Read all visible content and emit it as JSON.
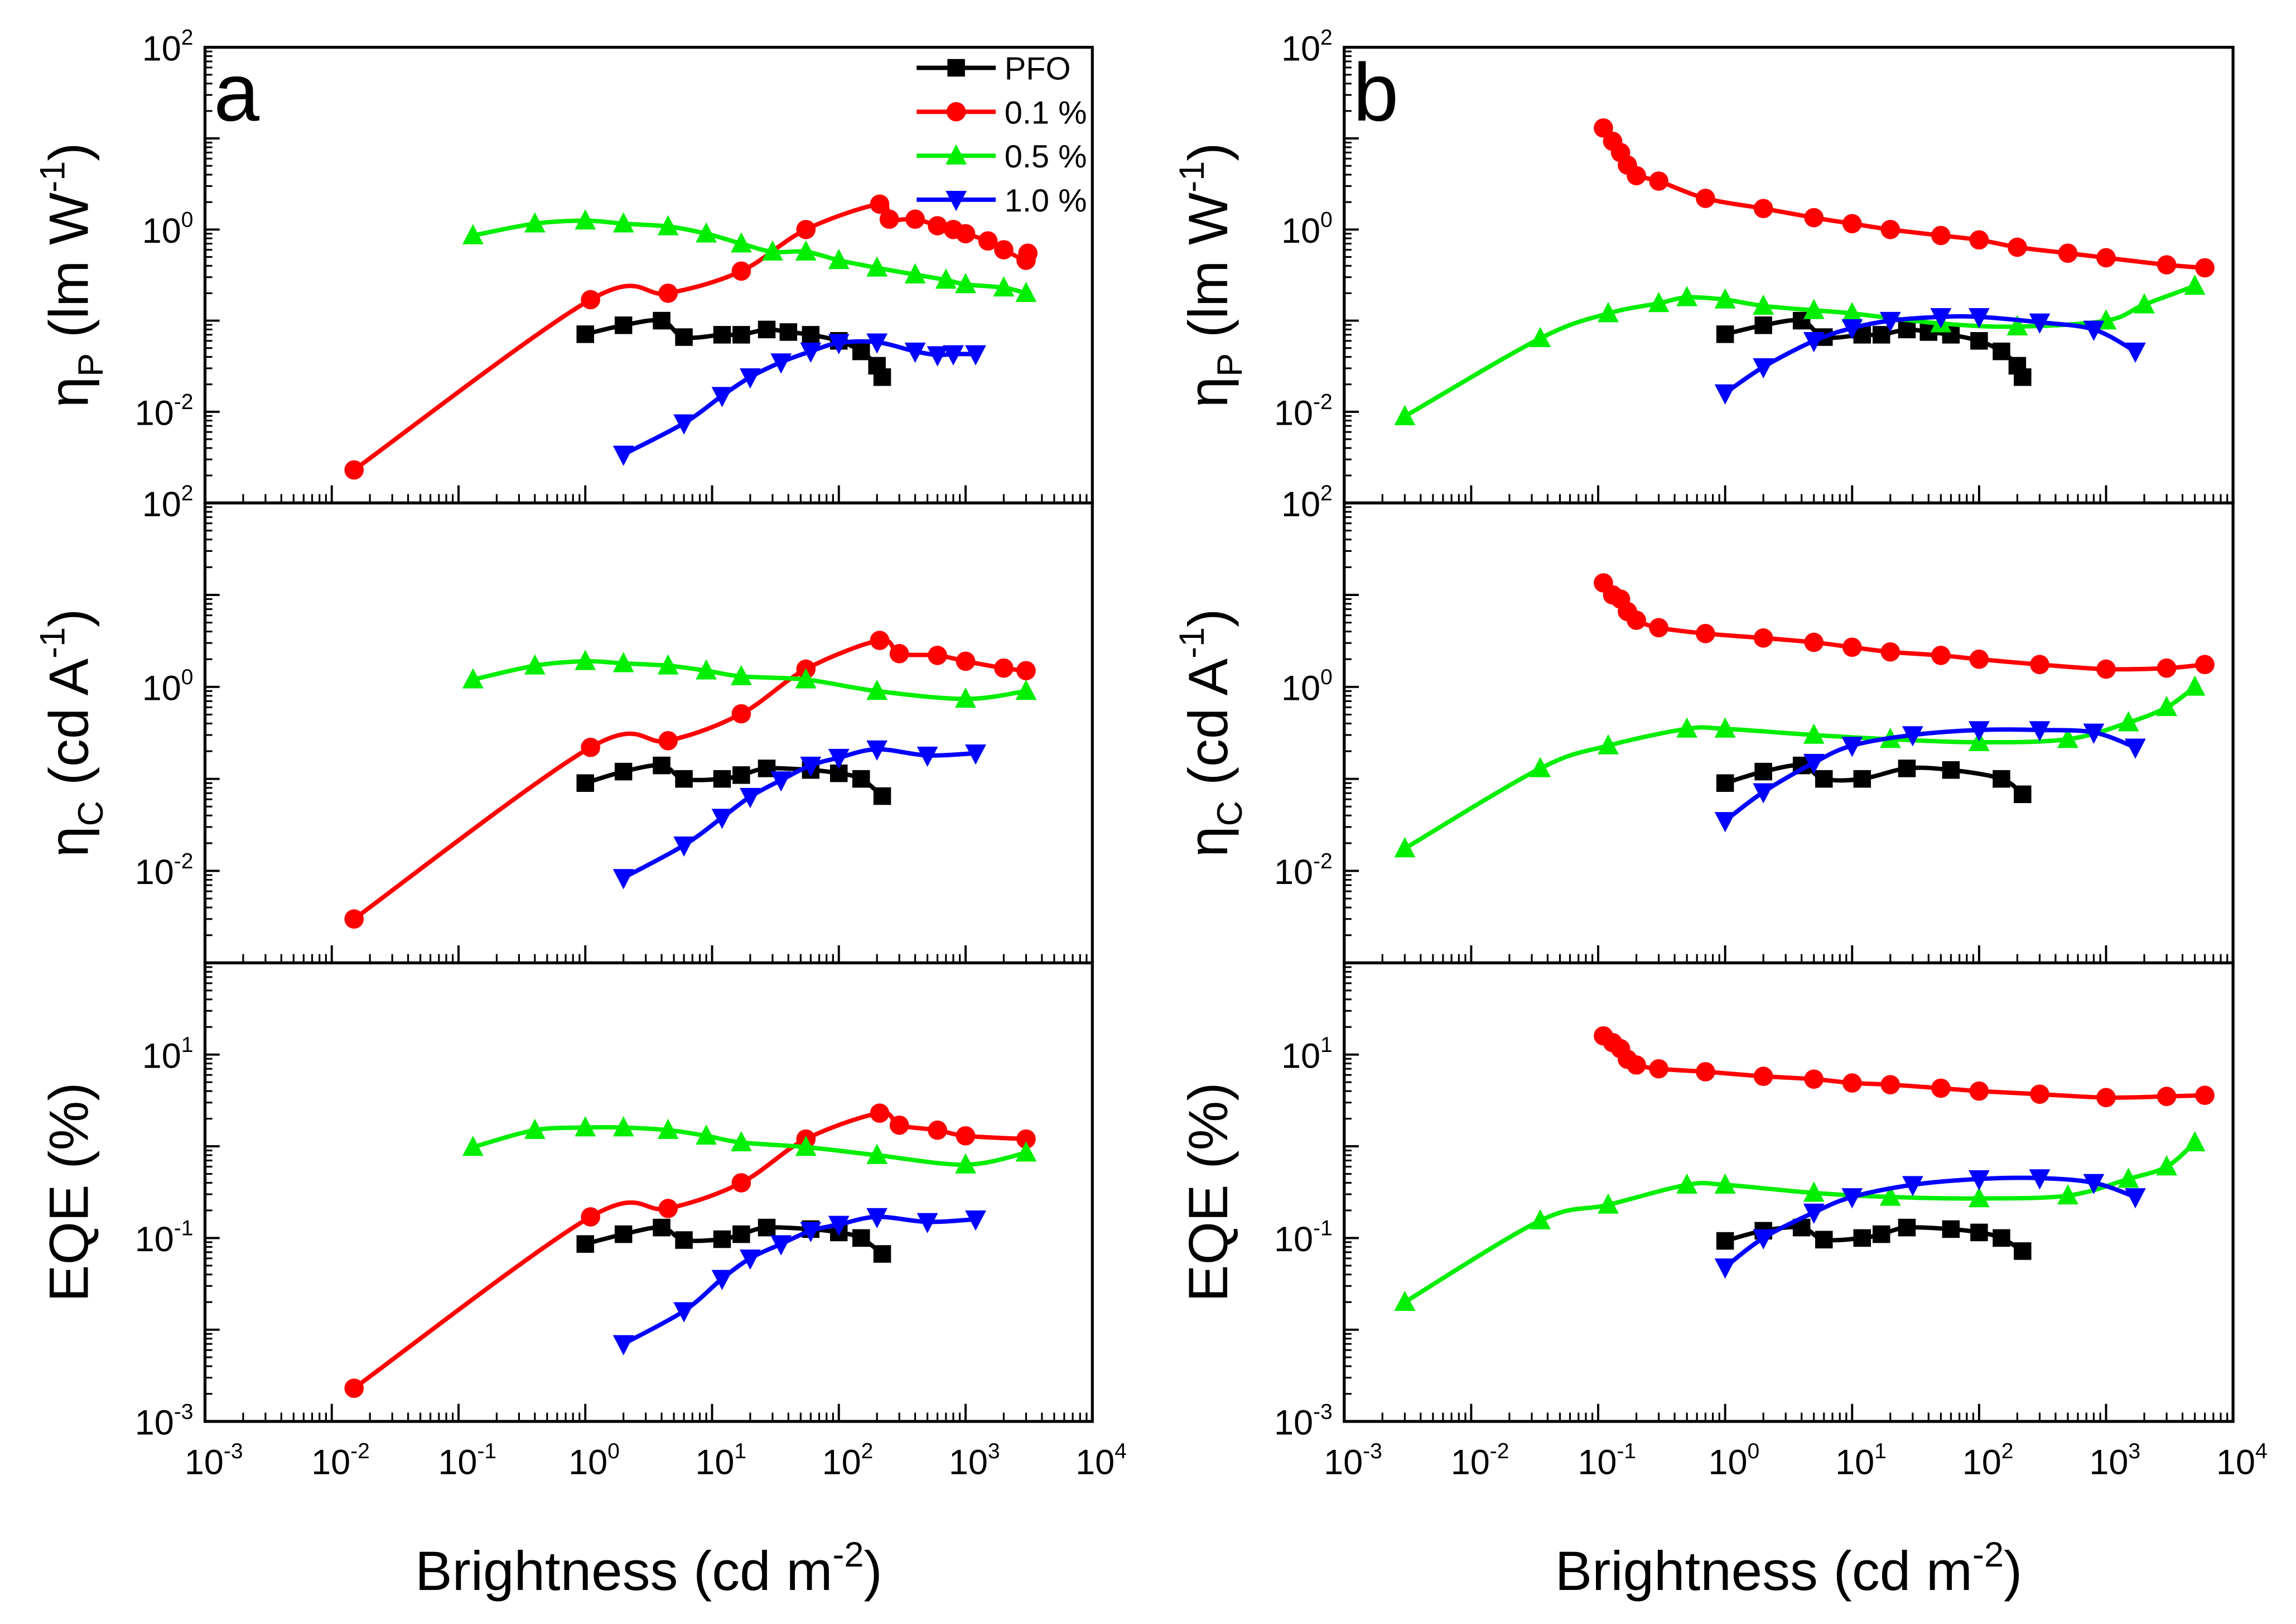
{
  "colors": {
    "PFO": "#000000",
    "0.1 %": "#ff0000",
    "0.5 %": "#00ee00",
    "1.0 %": "#0000ff"
  },
  "legend": {
    "placement": "top-right of panel a top plot",
    "entries": [
      "PFO",
      "0.1 %",
      "0.5 %",
      "1.0 %"
    ],
    "markers": [
      "square",
      "circle",
      "triangle-up",
      "triangle-down"
    ]
  },
  "xlabel": {
    "main": "Brightness (cd m",
    "sup": "-2",
    "close": ")"
  },
  "panel_labels": [
    "a",
    "b"
  ],
  "chart_data": [
    {
      "type": "line",
      "panel": "a",
      "row": 0,
      "ylabel": {
        "sym": "η",
        "sub": "P",
        "unit": " (lm W",
        "sup": "-1",
        "close": ")"
      },
      "xscale": "log",
      "yscale": "log",
      "xlim": [
        0.001,
        10000
      ],
      "ylim": [
        0.001,
        100
      ],
      "xticks": [
        "-3",
        "-2",
        "-1",
        "0",
        "1",
        "2",
        "3",
        "4"
      ],
      "yticks": [
        "2",
        "0",
        "-2"
      ],
      "grid": false,
      "series": [
        {
          "name": "PFO",
          "x": [
            1,
            2,
            4,
            6,
            12,
            17,
            27,
            40,
            60,
            100,
            150,
            200,
            220
          ],
          "y": [
            0.071,
            0.089,
            0.1,
            0.066,
            0.07,
            0.07,
            0.08,
            0.075,
            0.07,
            0.06,
            0.046,
            0.032,
            0.024
          ]
        },
        {
          "name": "0.1 %",
          "x": [
            0.015,
            1.1,
            4.5,
            17,
            55,
            210,
            250,
            400,
            600,
            800,
            1000,
            1500,
            2000,
            3000,
            3100
          ],
          "y": [
            0.0023,
            0.17,
            0.2,
            0.35,
            1.0,
            1.9,
            1.3,
            1.3,
            1.1,
            1.0,
            0.9,
            0.75,
            0.6,
            0.46,
            0.55
          ]
        },
        {
          "name": "0.5 %",
          "x": [
            0.13,
            0.4,
            1,
            2,
            4.5,
            9,
            17,
            30,
            55,
            100,
            200,
            400,
            700,
            1000,
            2000,
            3000
          ],
          "y": [
            0.86,
            1.16,
            1.25,
            1.16,
            1.08,
            0.9,
            0.7,
            0.57,
            0.57,
            0.46,
            0.38,
            0.32,
            0.28,
            0.25,
            0.23,
            0.2
          ]
        },
        {
          "name": "1.0 %",
          "x": [
            2,
            6,
            12,
            20,
            35,
            60,
            100,
            200,
            400,
            600,
            800,
            1200
          ],
          "y": [
            0.0034,
            0.0075,
            0.015,
            0.024,
            0.035,
            0.046,
            0.057,
            0.058,
            0.046,
            0.042,
            0.043,
            0.043
          ]
        }
      ]
    },
    {
      "type": "line",
      "panel": "a",
      "row": 1,
      "ylabel": {
        "sym": "η",
        "sub": "C",
        "unit": " (cd A",
        "sup": "-1",
        "close": ")"
      },
      "xscale": "log",
      "yscale": "log",
      "xlim": [
        0.001,
        10000
      ],
      "ylim": [
        0.001,
        100
      ],
      "xticks": [
        "-3",
        "-2",
        "-1",
        "0",
        "1",
        "2",
        "3",
        "4"
      ],
      "yticks": [
        "2",
        "0",
        "-2"
      ],
      "grid": false,
      "series": [
        {
          "name": "PFO",
          "x": [
            1,
            2,
            4,
            6,
            12,
            17,
            27,
            60,
            100,
            150,
            220
          ],
          "y": [
            0.09,
            0.12,
            0.14,
            0.1,
            0.1,
            0.11,
            0.13,
            0.125,
            0.115,
            0.1,
            0.065
          ]
        },
        {
          "name": "0.1 %",
          "x": [
            0.015,
            1.1,
            4.5,
            17,
            55,
            210,
            300,
            600,
            1000,
            2000,
            3000
          ],
          "y": [
            0.003,
            0.22,
            0.26,
            0.51,
            1.56,
            3.2,
            2.3,
            2.2,
            1.9,
            1.6,
            1.5
          ]
        },
        {
          "name": "0.5 %",
          "x": [
            0.13,
            0.4,
            1,
            2,
            4.5,
            9,
            17,
            55,
            200,
            1000,
            3000
          ],
          "y": [
            1.2,
            1.7,
            1.9,
            1.8,
            1.7,
            1.5,
            1.3,
            1.2,
            0.9,
            0.74,
            0.9
          ]
        },
        {
          "name": "1.0 %",
          "x": [
            2,
            6,
            12,
            20,
            35,
            60,
            100,
            200,
            500,
            1200
          ],
          "y": [
            0.0084,
            0.019,
            0.038,
            0.064,
            0.097,
            0.14,
            0.17,
            0.21,
            0.18,
            0.19
          ]
        }
      ]
    },
    {
      "type": "line",
      "panel": "a",
      "row": 2,
      "ylabel": {
        "sym": "",
        "sub": "",
        "unit": "EQE (%",
        "sup": "",
        "close": ")"
      },
      "xscale": "log",
      "yscale": "log",
      "xlim": [
        0.001,
        10000
      ],
      "ylim": [
        0.001,
        100
      ],
      "xticks": [
        "-3",
        "-2",
        "-1",
        "0",
        "1",
        "2",
        "3",
        "4"
      ],
      "yticks": [
        "1",
        "-1",
        "-3"
      ],
      "grid": false,
      "series": [
        {
          "name": "PFO",
          "x": [
            1,
            2,
            4,
            6,
            12,
            17,
            27,
            60,
            100,
            150,
            220
          ],
          "y": [
            0.086,
            0.11,
            0.13,
            0.095,
            0.097,
            0.11,
            0.13,
            0.125,
            0.115,
            0.1,
            0.067
          ]
        },
        {
          "name": "0.1 %",
          "x": [
            0.015,
            1.1,
            4.5,
            17,
            55,
            210,
            300,
            600,
            1000,
            3000
          ],
          "y": [
            0.0023,
            0.17,
            0.21,
            0.4,
            1.2,
            2.3,
            1.7,
            1.5,
            1.3,
            1.2
          ]
        },
        {
          "name": "0.5 %",
          "x": [
            0.13,
            0.4,
            1,
            2,
            4.5,
            9,
            17,
            55,
            200,
            1000,
            3000
          ],
          "y": [
            0.98,
            1.5,
            1.6,
            1.6,
            1.5,
            1.3,
            1.1,
            0.98,
            0.8,
            0.63,
            0.85
          ]
        },
        {
          "name": "1.0 %",
          "x": [
            2,
            6,
            12,
            20,
            35,
            60,
            100,
            200,
            500,
            1200
          ],
          "y": [
            0.007,
            0.016,
            0.036,
            0.06,
            0.086,
            0.12,
            0.14,
            0.17,
            0.15,
            0.16
          ]
        }
      ]
    },
    {
      "type": "line",
      "panel": "b",
      "row": 0,
      "ylabel": {
        "sym": "η",
        "sub": "P",
        "unit": " (lm W",
        "sup": "-1",
        "close": ")"
      },
      "xscale": "log",
      "yscale": "log",
      "xlim": [
        0.001,
        10000
      ],
      "ylim": [
        0.001,
        100
      ],
      "xticks": [
        "-3",
        "-2",
        "-1",
        "0",
        "1",
        "2",
        "3",
        "4"
      ],
      "yticks": [
        "2",
        "0",
        "-2"
      ],
      "grid": false,
      "series": [
        {
          "name": "PFO",
          "x": [
            1,
            2,
            4,
            6,
            12,
            17,
            27,
            40,
            60,
            100,
            150,
            200,
            220
          ],
          "y": [
            0.071,
            0.089,
            0.1,
            0.066,
            0.07,
            0.07,
            0.08,
            0.075,
            0.07,
            0.06,
            0.046,
            0.032,
            0.024
          ]
        },
        {
          "name": "0.1 %",
          "x": [
            0.11,
            0.13,
            0.15,
            0.17,
            0.2,
            0.3,
            0.7,
            2,
            5,
            10,
            20,
            50,
            100,
            200,
            500,
            1000,
            3000,
            6000
          ],
          "y": [
            13,
            9.3,
            7,
            5.1,
            3.9,
            3.4,
            2.2,
            1.7,
            1.35,
            1.16,
            1.0,
            0.86,
            0.77,
            0.64,
            0.55,
            0.49,
            0.41,
            0.38
          ]
        },
        {
          "name": "0.5 %",
          "x": [
            0.003,
            0.035,
            0.12,
            0.3,
            0.5,
            1,
            2,
            5,
            10,
            50,
            200,
            1000,
            2000,
            5000
          ],
          "y": [
            0.0089,
            0.064,
            0.12,
            0.155,
            0.18,
            0.17,
            0.145,
            0.13,
            0.12,
            0.093,
            0.086,
            0.1,
            0.15,
            0.24
          ]
        },
        {
          "name": "1.0 %",
          "x": [
            1,
            2,
            5,
            10,
            20,
            50,
            100,
            300,
            800,
            1700
          ],
          "y": [
            0.016,
            0.031,
            0.06,
            0.083,
            0.1,
            0.11,
            0.11,
            0.096,
            0.08,
            0.046
          ]
        }
      ]
    },
    {
      "type": "line",
      "panel": "b",
      "row": 1,
      "ylabel": {
        "sym": "η",
        "sub": "C",
        "unit": " (cd A",
        "sup": "-1",
        "close": ")"
      },
      "xscale": "log",
      "yscale": "log",
      "xlim": [
        0.001,
        10000
      ],
      "ylim": [
        0.001,
        100
      ],
      "xticks": [
        "-3",
        "-2",
        "-1",
        "0",
        "1",
        "2",
        "3",
        "4"
      ],
      "yticks": [
        "2",
        "0",
        "-2"
      ],
      "grid": false,
      "series": [
        {
          "name": "PFO",
          "x": [
            1,
            2,
            4,
            6,
            12,
            27,
            60,
            150,
            220
          ],
          "y": [
            0.09,
            0.12,
            0.14,
            0.1,
            0.1,
            0.13,
            0.125,
            0.1,
            0.068
          ]
        },
        {
          "name": "0.1 %",
          "x": [
            0.11,
            0.13,
            0.15,
            0.17,
            0.2,
            0.3,
            0.7,
            2,
            5,
            10,
            20,
            50,
            100,
            300,
            1000,
            3000,
            6000
          ],
          "y": [
            13.5,
            10,
            9,
            6.6,
            5.3,
            4.4,
            3.8,
            3.4,
            3.05,
            2.7,
            2.4,
            2.2,
            2.0,
            1.75,
            1.56,
            1.6,
            1.75
          ]
        },
        {
          "name": "0.5 %",
          "x": [
            0.003,
            0.035,
            0.12,
            0.5,
            1,
            5,
            20,
            100,
            500,
            1500,
            3000,
            5000
          ],
          "y": [
            0.0175,
            0.13,
            0.23,
            0.35,
            0.35,
            0.3,
            0.27,
            0.25,
            0.27,
            0.41,
            0.6,
            1.0
          ]
        },
        {
          "name": "1.0 %",
          "x": [
            1,
            2,
            5,
            10,
            30,
            100,
            300,
            800,
            1700
          ],
          "y": [
            0.035,
            0.072,
            0.15,
            0.23,
            0.3,
            0.34,
            0.34,
            0.32,
            0.22
          ]
        }
      ]
    },
    {
      "type": "line",
      "panel": "b",
      "row": 2,
      "ylabel": {
        "sym": "",
        "sub": "",
        "unit": "EQE (%",
        "sup": "",
        "close": ")"
      },
      "xscale": "log",
      "yscale": "log",
      "xlim": [
        0.001,
        10000
      ],
      "ylim": [
        0.001,
        100
      ],
      "xticks": [
        "-3",
        "-2",
        "-1",
        "0",
        "1",
        "2",
        "3",
        "4"
      ],
      "yticks": [
        "1",
        "-1",
        "-3"
      ],
      "grid": false,
      "series": [
        {
          "name": "PFO",
          "x": [
            1,
            2,
            4,
            6,
            12,
            17,
            27,
            60,
            100,
            150,
            220
          ],
          "y": [
            0.093,
            0.12,
            0.13,
            0.096,
            0.1,
            0.11,
            0.13,
            0.125,
            0.115,
            0.1,
            0.072
          ]
        },
        {
          "name": "0.1 %",
          "x": [
            0.11,
            0.13,
            0.15,
            0.17,
            0.2,
            0.3,
            0.7,
            2,
            5,
            10,
            20,
            50,
            100,
            300,
            1000,
            3000,
            6000
          ],
          "y": [
            16,
            13.5,
            11.6,
            8.9,
            7.7,
            7,
            6.5,
            5.8,
            5.4,
            4.9,
            4.7,
            4.3,
            4.0,
            3.7,
            3.4,
            3.5,
            3.6
          ]
        },
        {
          "name": "0.5 %",
          "x": [
            0.003,
            0.035,
            0.12,
            0.5,
            1,
            5,
            20,
            100,
            500,
            1500,
            3000,
            5000
          ],
          "y": [
            0.02,
            0.155,
            0.23,
            0.38,
            0.38,
            0.31,
            0.28,
            0.27,
            0.29,
            0.44,
            0.6,
            1.1
          ]
        },
        {
          "name": "1.0 %",
          "x": [
            1,
            2,
            5,
            10,
            30,
            100,
            300,
            800,
            1700
          ],
          "y": [
            0.048,
            0.1,
            0.19,
            0.28,
            0.38,
            0.44,
            0.45,
            0.4,
            0.28
          ]
        }
      ]
    }
  ]
}
